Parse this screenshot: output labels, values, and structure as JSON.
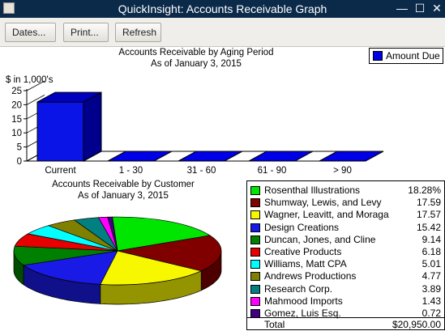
{
  "window": {
    "title": "QuickInsight: Accounts Receivable Graph",
    "controls": {
      "close": "✕",
      "minimize": "—",
      "maximize": "☐"
    }
  },
  "toolbar": {
    "dates_label": "Dates...",
    "print_label": "Print...",
    "refresh_label": "Refresh"
  },
  "colors": {
    "titlebar": "#0b2a4a",
    "bar": "#0000e6",
    "toolbar": "#efeeea"
  },
  "chart_data": [
    {
      "type": "bar",
      "title": "Accounts Receivable by Aging Period",
      "subtitle": "As of January 3, 2015",
      "ylabel": "$ in 1,000's",
      "ylim": [
        0,
        25
      ],
      "yticks": [
        0,
        5,
        10,
        15,
        20,
        25
      ],
      "categories": [
        "Current",
        "1 - 30",
        "31 - 60",
        "61 - 90",
        "> 90"
      ],
      "series": [
        {
          "name": "Amount Due",
          "values": [
            20.95,
            0,
            0,
            0,
            0
          ]
        }
      ],
      "legend": "top-right"
    },
    {
      "type": "pie",
      "title": "Accounts Receivable by Customer",
      "subtitle": "As of January 3, 2015",
      "slices": [
        {
          "label": "Rosenthal Illustrations",
          "value": "18.28%",
          "percent": 18.28,
          "color": "#00e600"
        },
        {
          "label": "Shumway, Lewis, and Levy",
          "value": "17.59",
          "percent": 17.59,
          "color": "#800000"
        },
        {
          "label": "Wagner, Leavitt, and Moraga",
          "value": "17.57",
          "percent": 17.57,
          "color": "#f7f700"
        },
        {
          "label": "Design Creations",
          "value": "15.42",
          "percent": 15.42,
          "color": "#1a1ae6"
        },
        {
          "label": "Duncan, Jones, and Cline",
          "value": "9.14",
          "percent": 9.14,
          "color": "#008000"
        },
        {
          "label": "Creative Products",
          "value": "6.18",
          "percent": 6.18,
          "color": "#e60000"
        },
        {
          "label": "Williams, Matt CPA",
          "value": "5.01",
          "percent": 5.01,
          "color": "#00ffff"
        },
        {
          "label": "Andrews Productions",
          "value": "4.77",
          "percent": 4.77,
          "color": "#808000"
        },
        {
          "label": "Research Corp.",
          "value": "3.89",
          "percent": 3.89,
          "color": "#008080"
        },
        {
          "label": "Mahmood Imports",
          "value": "1.43",
          "percent": 1.43,
          "color": "#ff00ff"
        },
        {
          "label": "Gomez, Luis Esq.",
          "value": "0.72",
          "percent": 0.72,
          "color": "#400080"
        }
      ],
      "total_label": "Total",
      "total_value": "$20,950.00"
    }
  ]
}
